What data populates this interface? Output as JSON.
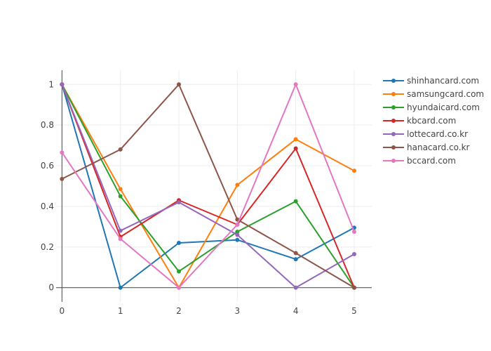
{
  "chart_data": {
    "type": "line",
    "title": "",
    "xlabel": "",
    "ylabel": "",
    "x": [
      0,
      1,
      2,
      3,
      4,
      5
    ],
    "xlim": [
      -0.1,
      5.3
    ],
    "ylim": [
      -0.07,
      1.07
    ],
    "x_ticks": [
      "0",
      "1",
      "2",
      "3",
      "4",
      "5"
    ],
    "y_ticks": [
      {
        "value": 0,
        "label": "0"
      },
      {
        "value": 0.2,
        "label": "0.2"
      },
      {
        "value": 0.4,
        "label": "0.4"
      },
      {
        "value": 0.6,
        "label": "0.6"
      },
      {
        "value": 0.8,
        "label": "0.8"
      },
      {
        "value": 1,
        "label": "1"
      }
    ],
    "grid": true,
    "legend_position": "top-right",
    "series": [
      {
        "name": "shinhancard.com",
        "color": "#1f77b4",
        "values": [
          1,
          0,
          0.22,
          0.235,
          0.14,
          0.295
        ]
      },
      {
        "name": "samsungcard.com",
        "color": "#ff7f0e",
        "values": [
          1,
          0.485,
          0,
          0.505,
          0.73,
          0.575
        ]
      },
      {
        "name": "hyundaicard.com",
        "color": "#2ca02c",
        "values": [
          1,
          0.45,
          0.08,
          0.275,
          0.425,
          0
        ]
      },
      {
        "name": "kbcard.com",
        "color": "#d62728",
        "values": [
          1,
          0.25,
          0.43,
          0.31,
          0.685,
          0
        ]
      },
      {
        "name": "lottecard.co.kr",
        "color": "#9467bd",
        "values": [
          1,
          0.28,
          0.42,
          0.26,
          0,
          0.165
        ]
      },
      {
        "name": "hanacard.co.kr",
        "color": "#8c564b",
        "values": [
          0.535,
          0.68,
          1,
          0.335,
          0.17,
          0
        ]
      },
      {
        "name": "bccard.com",
        "color": "#e377c2",
        "values": [
          0.665,
          0.24,
          0,
          0.31,
          1,
          0.275
        ]
      }
    ]
  }
}
